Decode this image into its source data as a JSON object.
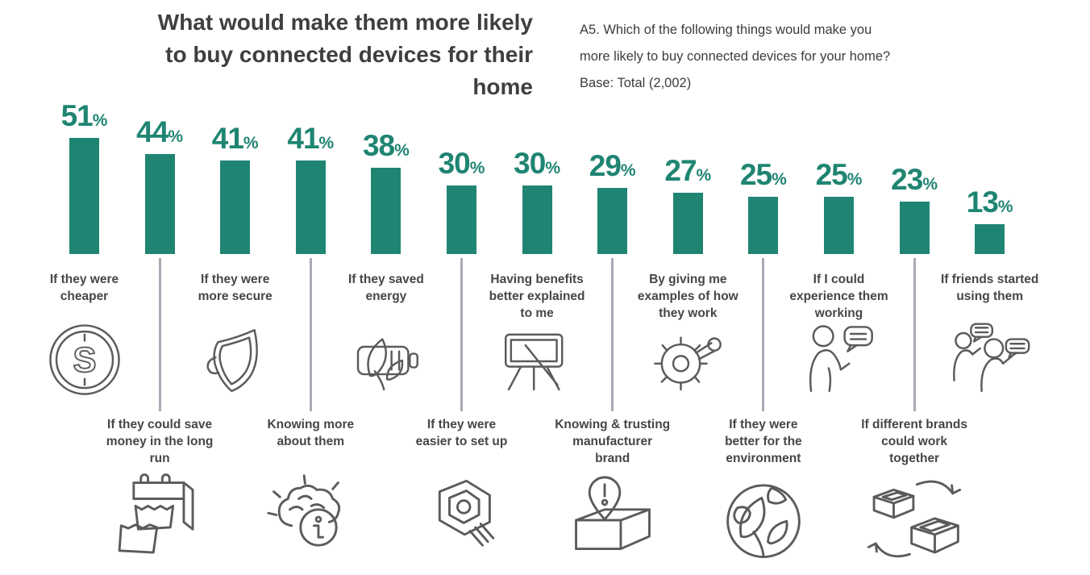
{
  "header": {
    "title": "What would make them more likely\nto buy connected devices for their\nhome"
  },
  "note": {
    "text": "A5. Which of the following things would make you\nmore likely to buy connected devices for your home?\nBase: Total (2,002)"
  },
  "colors": {
    "bar": "#1F8572",
    "value_text": "#1F8572",
    "title_text": "#3E3F41",
    "label_text": "#454649",
    "connector": "#A8AAB5",
    "icon_stroke": "#5A5B5D",
    "background": "#FFFFFF"
  },
  "chart_data": {
    "type": "bar",
    "title": "What would make them more likely to buy connected devices for their home",
    "subtitle": "A5. Which of the following things would make you more likely to buy connected devices for your home? Base: Total (2,002)",
    "unit": "%",
    "xlabel": "",
    "ylabel": "",
    "ylim": [
      0,
      55
    ],
    "grid": false,
    "legend": "none",
    "value_labels": true,
    "categories": [
      "If they were\ncheaper",
      "If they could save\nmoney in the long\nrun",
      "If they were\nmore secure",
      "Knowing more\nabout them",
      "If they saved\nenergy",
      "If they were\neasier to set up",
      "Having benefits\nbetter explained\nto me",
      "Knowing & trusting\nmanufacturer\nbrand",
      "By giving me\nexamples of how\nthey work",
      "If they were\nbetter for the\nenvironment",
      "If I could\nexperience them\nworking",
      "If different brands\ncould work\ntogether",
      "If friends started\nusing them"
    ],
    "values": [
      51,
      44,
      41,
      41,
      38,
      30,
      30,
      29,
      27,
      25,
      25,
      23,
      13
    ],
    "label_rows": [
      "top",
      "bottom",
      "top",
      "bottom",
      "top",
      "bottom",
      "top",
      "bottom",
      "top",
      "bottom",
      "top",
      "bottom",
      "top"
    ],
    "icons": [
      "dollar-coin-icon",
      "calendar-torn-icon",
      "shield-icon",
      "brain-info-icon",
      "eco-battery-icon",
      "wrench-bolt-icon",
      "presentation-icon",
      "box-pin-icon",
      "gear-icon",
      "globe-leaf-icon",
      "person-speech-icon",
      "boxes-exchange-icon",
      "people-chat-icon"
    ]
  }
}
